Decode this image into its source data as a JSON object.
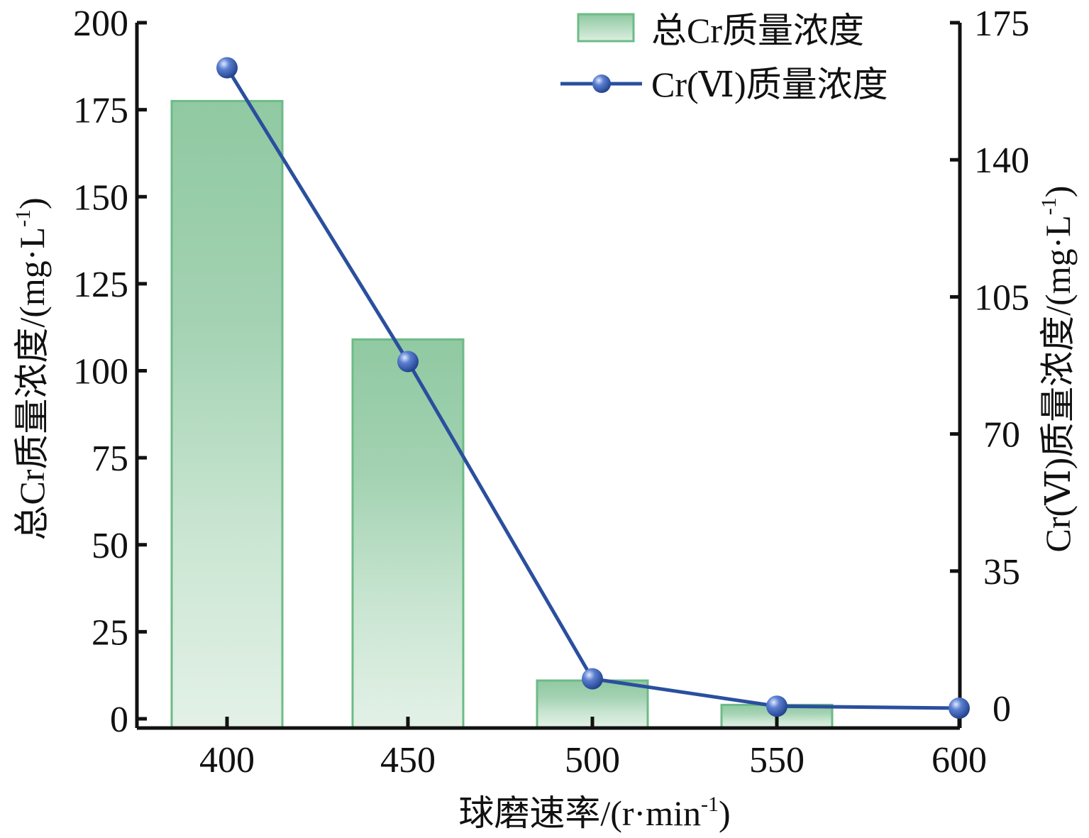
{
  "chart_data": {
    "type": "bar",
    "x_label": "球磨速率/(r·min",
    "x_label_sup": "-1",
    "x_label_tail": ")",
    "categories": [
      "400",
      "450",
      "500",
      "550",
      "600"
    ],
    "y_left": {
      "label": "总Cr质量浓度/(mg·L",
      "label_sup": "-1",
      "label_tail": ")",
      "range": [
        0,
        200
      ],
      "ticks": [
        "0",
        "25",
        "50",
        "75",
        "100",
        "125",
        "150",
        "175",
        "200"
      ]
    },
    "y_right": {
      "label": "Cr(Ⅵ)质量浓度/(mg·L",
      "label_sup": "-1",
      "label_tail": ")",
      "range": [
        0,
        175
      ],
      "ticks": [
        "0",
        "35",
        "70",
        "105",
        "140",
        "175"
      ]
    },
    "series": [
      {
        "name": "总Cr质量浓度",
        "type": "bar",
        "axis": "left",
        "color": "#8cc7a0",
        "edge_color": "#6dbb87",
        "values": [
          177.5,
          109,
          11,
          4,
          null
        ]
      },
      {
        "name": "Cr(Ⅵ)质量浓度",
        "type": "line",
        "axis": "right",
        "color": "#2a4f9e",
        "values": [
          163.5,
          88.5,
          7.5,
          0.5,
          0
        ]
      }
    ],
    "legend_position": "top-right",
    "grid": false
  }
}
